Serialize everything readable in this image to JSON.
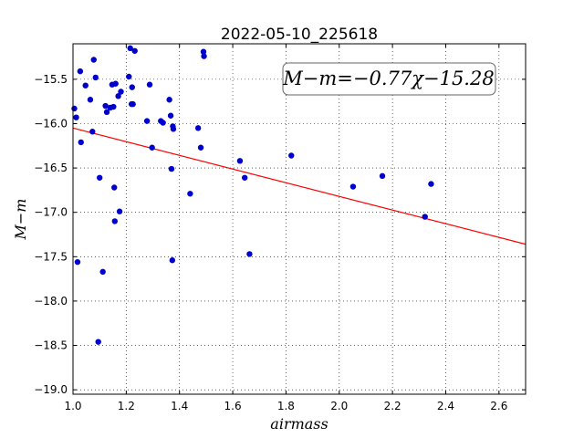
{
  "chart_data": {
    "type": "scatter",
    "title": "2022-05-10_225618",
    "xlabel": "airmass",
    "ylabel": "M−m",
    "xlim": [
      1.0,
      2.7
    ],
    "ylim": [
      -19.05,
      -15.1
    ],
    "grid": true,
    "x_ticks": [
      1.0,
      1.2,
      1.4,
      1.6,
      1.8,
      2.0,
      2.2,
      2.4,
      2.6
    ],
    "x_tick_labels": [
      "1.0",
      "1.2",
      "1.4",
      "1.6",
      "1.8",
      "2.0",
      "2.2",
      "2.4",
      "2.6"
    ],
    "y_ticks": [
      -15.5,
      -16.0,
      -16.5,
      -17.0,
      -17.5,
      -18.0,
      -18.5,
      -19.0
    ],
    "y_tick_labels": [
      "−15.5",
      "−16.0",
      "−16.5",
      "−17.0",
      "−17.5",
      "−18.0",
      "−18.5",
      "−19.0"
    ],
    "annotation": "M−m=−0.77χ−15.28",
    "fit_line": {
      "slope": -0.77,
      "intercept": -15.28,
      "color": "#ff0000"
    },
    "marker_color": "#0000cc",
    "points": [
      {
        "x": 1.005,
        "y": -15.83
      },
      {
        "x": 1.012,
        "y": -15.93
      },
      {
        "x": 1.017,
        "y": -17.56
      },
      {
        "x": 1.027,
        "y": -15.41
      },
      {
        "x": 1.03,
        "y": -16.21
      },
      {
        "x": 1.047,
        "y": -15.57
      },
      {
        "x": 1.065,
        "y": -15.73
      },
      {
        "x": 1.073,
        "y": -16.09
      },
      {
        "x": 1.078,
        "y": -15.28
      },
      {
        "x": 1.085,
        "y": -15.48
      },
      {
        "x": 1.095,
        "y": -18.46
      },
      {
        "x": 1.1,
        "y": -16.61
      },
      {
        "x": 1.112,
        "y": -17.67
      },
      {
        "x": 1.122,
        "y": -15.8
      },
      {
        "x": 1.127,
        "y": -15.87
      },
      {
        "x": 1.14,
        "y": -15.82
      },
      {
        "x": 1.147,
        "y": -15.56
      },
      {
        "x": 1.152,
        "y": -15.81
      },
      {
        "x": 1.155,
        "y": -16.72
      },
      {
        "x": 1.157,
        "y": -17.1
      },
      {
        "x": 1.16,
        "y": -15.55
      },
      {
        "x": 1.17,
        "y": -15.69
      },
      {
        "x": 1.175,
        "y": -16.99
      },
      {
        "x": 1.18,
        "y": -15.64
      },
      {
        "x": 1.21,
        "y": -15.47
      },
      {
        "x": 1.215,
        "y": -15.15
      },
      {
        "x": 1.22,
        "y": -15.78
      },
      {
        "x": 1.222,
        "y": -15.59
      },
      {
        "x": 1.225,
        "y": -15.78
      },
      {
        "x": 1.232,
        "y": -15.18
      },
      {
        "x": 1.278,
        "y": -15.97
      },
      {
        "x": 1.288,
        "y": -15.56
      },
      {
        "x": 1.297,
        "y": -16.27
      },
      {
        "x": 1.33,
        "y": -15.97
      },
      {
        "x": 1.338,
        "y": -15.99
      },
      {
        "x": 1.362,
        "y": -15.73
      },
      {
        "x": 1.367,
        "y": -15.91
      },
      {
        "x": 1.37,
        "y": -16.51
      },
      {
        "x": 1.373,
        "y": -17.54
      },
      {
        "x": 1.375,
        "y": -16.03
      },
      {
        "x": 1.377,
        "y": -16.06
      },
      {
        "x": 1.44,
        "y": -16.79
      },
      {
        "x": 1.47,
        "y": -16.05
      },
      {
        "x": 1.48,
        "y": -16.27
      },
      {
        "x": 1.49,
        "y": -15.19
      },
      {
        "x": 1.492,
        "y": -15.24
      },
      {
        "x": 1.627,
        "y": -16.42
      },
      {
        "x": 1.645,
        "y": -16.61
      },
      {
        "x": 1.663,
        "y": -17.47
      },
      {
        "x": 1.82,
        "y": -16.36
      },
      {
        "x": 2.052,
        "y": -16.71
      },
      {
        "x": 2.162,
        "y": -16.59
      },
      {
        "x": 2.322,
        "y": -17.05
      },
      {
        "x": 2.345,
        "y": -16.68
      }
    ]
  }
}
